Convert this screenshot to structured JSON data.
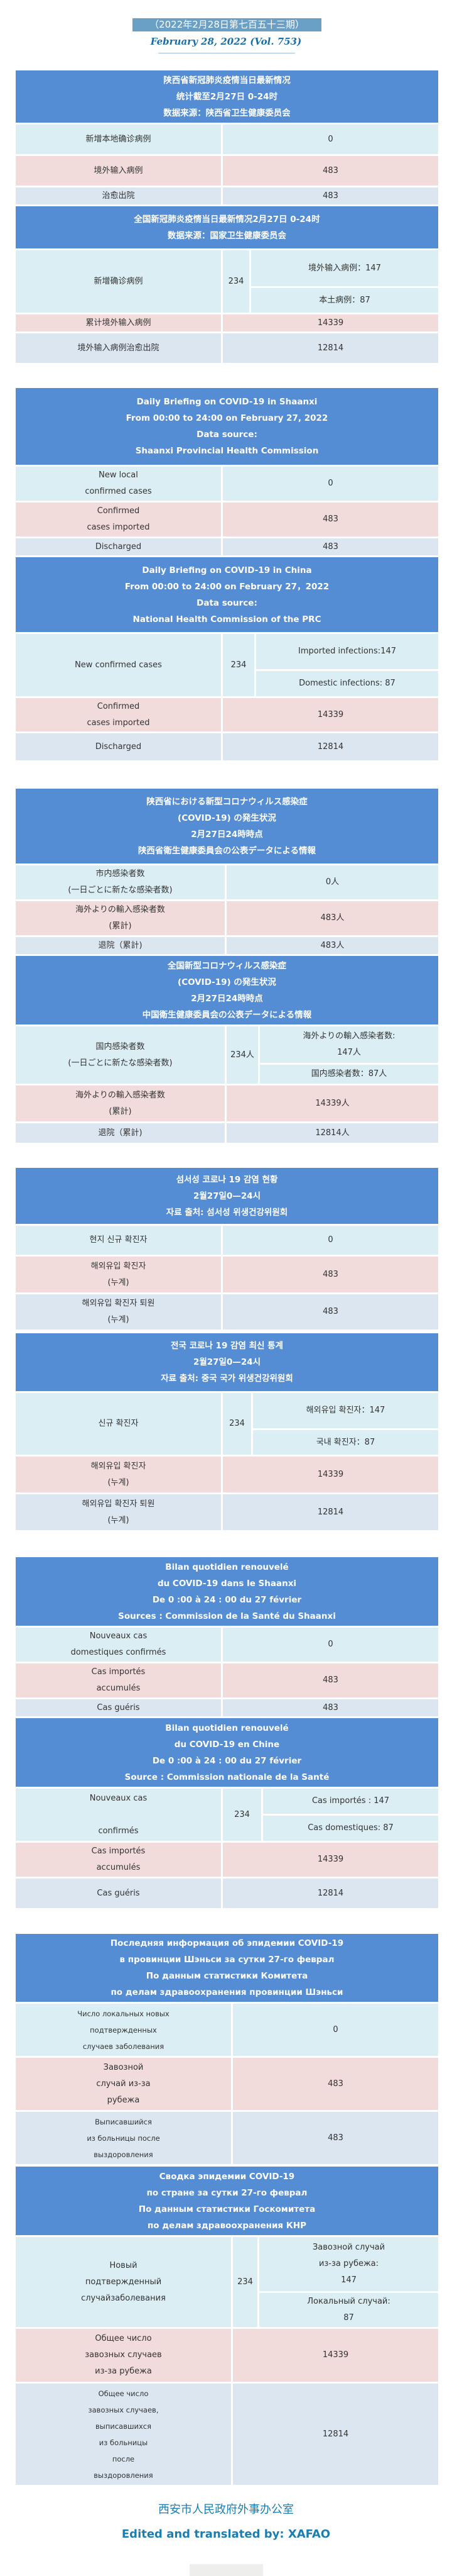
{
  "issue_title": "（2022年2月28日第七百五十三期）",
  "issue_title_en": "February 28, 2022 (Vol. 753)",
  "colors": {
    "header": "#548dd4",
    "row_new": "#dbeef3",
    "row_imported": "#f2dcdb",
    "row_discharged": "#dce6f1",
    "footer": "#1a7fb0"
  },
  "sections": [
    {
      "header": [
        "陕西省新冠肺炎疫情当日最新情况",
        "统计截至2月27日 0-24时",
        "数据来源：陕西省卫生健康委员会"
      ],
      "rows": [
        {
          "label": "新增本地确诊病例",
          "value": "0"
        },
        {
          "label": "境外输入病例",
          "value": "483"
        },
        {
          "label": "治愈出院",
          "value": "483"
        }
      ]
    },
    {
      "header": [
        "全国新冠肺炎疫情当日最新情况2月27日 0-24时",
        "数据来源：国家卫生健康委员会"
      ],
      "rows": [
        {
          "label": "新增确诊病例",
          "value": "234",
          "sub": [
            "境外输入病例：147",
            "本土病例：87"
          ]
        },
        {
          "label": "累计境外输入病例",
          "value": "14339"
        },
        {
          "label": "境外输入病例治愈出院",
          "value": "12814"
        }
      ]
    },
    {
      "header": [
        "Daily Briefing on COVID-19 in Shaanxi",
        "From 00:00 to 24:00 on February 27, 2022",
        "Data source:",
        "Shaanxi Provincial Health Commission"
      ],
      "rows": [
        {
          "label": "New local\nconfirmed cases",
          "value": "0"
        },
        {
          "label": "Confirmed\ncases imported",
          "value": "483"
        },
        {
          "label": "Discharged",
          "value": "483"
        }
      ]
    },
    {
      "header": [
        "Daily Briefing on COVID-19 in China",
        "From 00:00 to 24:00 on  February 27，2022",
        "Data source:",
        "National Health Commission of the PRC"
      ],
      "rows": [
        {
          "label": "New confirmed cases",
          "value": "234",
          "sub": [
            "Imported infections:147",
            "Domestic infections: 87"
          ]
        },
        {
          "label": "Confirmed\ncases imported",
          "value": "14339"
        },
        {
          "label": "Discharged",
          "value": "12814"
        }
      ]
    },
    {
      "header": [
        "陕西省における新型コロナウィルス感染症",
        "(COVID-19) の発生状況",
        "2月27日24時時点",
        "陕西省衛生健康委員会の公表データによる情報"
      ],
      "rows": [
        {
          "label": "市内感染者数\n(一日ごとに新たな感染者数)",
          "value": "0人"
        },
        {
          "label": "海外よりの輸入感染者数\n(累計)",
          "value": "483人"
        },
        {
          "label": "退院（累計)",
          "value": "483人"
        }
      ]
    },
    {
      "header": [
        "全国新型コロナウィルス感染症",
        "(COVID-19) の発生状況",
        "2月27日24時時点",
        "中国衛生健康委員会の公表データによる情報"
      ],
      "rows": [
        {
          "label": "国内感染者数\n(一日ごとに新たな感染者数)",
          "value": "234人",
          "sub": [
            "海外よりの輸入感染者数:\n147人",
            "国内感染者数：87人"
          ]
        },
        {
          "label": "海外よりの輸入感染者数\n(累計)",
          "value": "14339人"
        },
        {
          "label": "退院（累計)",
          "value": "12814人"
        }
      ]
    },
    {
      "header": [
        "섬서성 코로나 19 감염 현황",
        "2월27일0—24시",
        "자료 출처: 섬서성 위생건강위원회"
      ],
      "rows": [
        {
          "label": "현지 신규 확진자",
          "value": "0"
        },
        {
          "label": "해외유입 확진자\n(누계)",
          "value": "483"
        },
        {
          "label": "해외유입 확진자 퇴원\n(누계)",
          "value": "483"
        }
      ]
    },
    {
      "header": [
        "전국 코로나 19 감염 최신 통계",
        "2월27일0—24시",
        "자료 출처: 중국 국가 위생건강위원회"
      ],
      "rows": [
        {
          "label": "신규 확진자",
          "value": "234",
          "sub": [
            "해외유입 확진자：147",
            "국내 확진자：87"
          ]
        },
        {
          "label": "해외유입 확진자\n(누계)",
          "value": "14339"
        },
        {
          "label": "해외유입 확진자 퇴원\n(누계)",
          "value": "12814"
        }
      ]
    },
    {
      "header": [
        "Bilan quotidien renouvelé",
        "du COVID-19 dans le Shaanxi",
        "De 0 :00 à 24 : 00 du 27 février",
        "Sources : Commission de la Santé du Shaanxi"
      ],
      "rows": [
        {
          "label": "Nouveaux cas\ndomestiques confirmés",
          "value": "0"
        },
        {
          "label": "Cas importés\naccumulés",
          "value": "483"
        },
        {
          "label": "Cas guéris",
          "value": "483"
        }
      ]
    },
    {
      "header": [
        "Bilan quotidien renouvelé",
        "du COVID-19 en Chine",
        "De 0 :00 à 24 : 00 du 27 février",
        "Source : Commission nationale de la Santé"
      ],
      "rows": [
        {
          "label": "Nouveaux cas\n\nconfirmés",
          "value": "234",
          "sub": [
            "Cas importés : 147",
            "Cas domestiques: 87"
          ]
        },
        {
          "label": "Cas importés\naccumulés",
          "value": "14339"
        },
        {
          "label": "Cas guéris",
          "value": "12814"
        }
      ]
    },
    {
      "header": [
        "Последняя информация об эпидемии COVID-19",
        "в провинции Шэньси за сутки 27-го феврал",
        "По данным статистики Комитета",
        "по делам здравоохранения провинции Шэньси"
      ],
      "rows": [
        {
          "label": "Число локальных новых\nподтвержденных\nслучаев заболевания",
          "value": "0"
        },
        {
          "label": "Завозной\nслучай из-за\nрубежа",
          "value": "483"
        },
        {
          "label": "Выписавшийся\nиз больницы после\nвыздоровления",
          "value": "483"
        }
      ]
    },
    {
      "header": [
        "Сводка эпидемии COVID-19",
        "по стране за сутки 27-го феврал",
        "По данным статистики Госкомитета",
        "по делам здравоохранения КНР"
      ],
      "rows": [
        {
          "label": "Новый\nподтвержденный\nслучайзаболевания",
          "value": "234",
          "sub": [
            "Завозной случай\nиз-за рубежа:\n147",
            "Локальный случай:\n87"
          ]
        },
        {
          "label": "Общее число\nзавозных случаев\nиз-за рубежа",
          "value": "14339"
        },
        {
          "label": "Общее число\nзавозных случаев,\nвыписавшихся\nиз больницы\nпосле\nвыздоровления",
          "value": "12814"
        }
      ]
    }
  ],
  "footer": {
    "org": "西安市人民政府外事办公室",
    "credit": "Edited and translated by: XAFAO"
  }
}
